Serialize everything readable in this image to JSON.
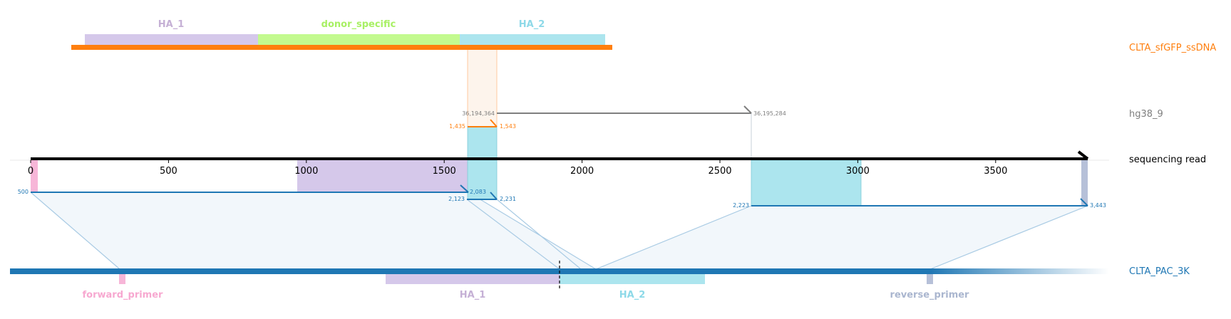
{
  "tracks": {
    "donor": {
      "label": "CLTA_sfGFP_ssDNA",
      "color": "#ff7f0e"
    },
    "genome": {
      "label": "hg38_9",
      "color": "#7f7f7f"
    },
    "read": {
      "label": "sequencing read",
      "color": "#000000"
    },
    "target": {
      "label": "CLTA_PAC_3K",
      "color": "#1f77b4"
    }
  },
  "donor_features": [
    {
      "name": "HA_1",
      "color": "#c5b0d5"
    },
    {
      "name": "donor_specific",
      "color": "#b5f97a"
    },
    {
      "name": "HA_2",
      "color": "#9edae5"
    }
  ],
  "target_features": [
    {
      "name": "forward_primer",
      "color": "#f7a8d0"
    },
    {
      "name": "HA_1",
      "color": "#c5b0d5"
    },
    {
      "name": "HA_2",
      "color": "#9edae5"
    },
    {
      "name": "reverse_primer",
      "color": "#aab6cf"
    }
  ],
  "read_axis": {
    "ticks": [
      0,
      500,
      1000,
      1500,
      2000,
      2500,
      3000,
      3500
    ],
    "tick_labels": [
      "0",
      "500",
      "1000",
      "1500",
      "2000",
      "2500",
      "3000",
      "3500"
    ],
    "range": [
      0,
      3834
    ]
  },
  "read_features": [
    {
      "name": "forward_primer",
      "start": 0,
      "end": 25,
      "color": "#f7a8d0"
    },
    {
      "name": "HA_1",
      "start": 965,
      "end": 1590,
      "color": "#c5b0d5"
    },
    {
      "name": "HA_2",
      "start": 1590,
      "end": 1695,
      "color": "#9edae5"
    },
    {
      "name": "HA_2",
      "start": 2613,
      "end": 3013,
      "color": "#9edae5"
    },
    {
      "name": "reverse_primer",
      "start": 3810,
      "end": 3834,
      "color": "#aab6cf"
    }
  ],
  "alignments": [
    {
      "target": "target",
      "read_start": 0,
      "read_end": 1587,
      "ref_start_label": "500",
      "ref_end_label": "2,083"
    },
    {
      "target": "target",
      "read_start": 1587,
      "read_end": 1695,
      "ref_start_label": "2,123",
      "ref_end_label": "2,231"
    },
    {
      "target": "target",
      "read_start": 2613,
      "read_end": 3834,
      "ref_start_label": "2,223",
      "ref_end_label": "3,443"
    },
    {
      "target": "donor",
      "read_start": 1587,
      "read_end": 1695,
      "ref_start_label": "1,435",
      "ref_end_label": "1,543"
    },
    {
      "target": "genome",
      "read_start": 1695,
      "read_end": 2613,
      "ref_start_label": "36,194,364",
      "ref_end_label": "36,195,284"
    }
  ]
}
